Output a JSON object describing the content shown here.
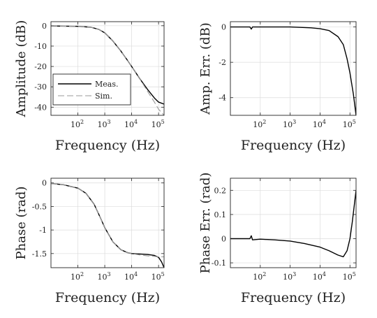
{
  "chart_data": [
    {
      "type": "line",
      "id": "amplitude",
      "title": "",
      "xlabel": "Frequency (Hz)",
      "ylabel": "Amplitude (dB)",
      "xscale": "log",
      "xlim": [
        10,
        160000
      ],
      "ylim": [
        -44,
        2
      ],
      "xticks": [
        100,
        1000,
        10000,
        100000
      ],
      "xtick_labels": [
        {
          "base": "10",
          "exp": "2"
        },
        {
          "base": "10",
          "exp": "3"
        },
        {
          "base": "10",
          "exp": "4"
        },
        {
          "base": "10",
          "exp": "5"
        }
      ],
      "yticks": [
        0,
        -10,
        -20,
        -30,
        -40
      ],
      "ytick_labels": [
        "0",
        "-10",
        "-20",
        "-30",
        "-40"
      ],
      "grid": true,
      "legend": {
        "placement": "lower-left",
        "entries": [
          "Meas.",
          "Sim."
        ]
      },
      "series": [
        {
          "name": "Meas.",
          "color": "#000000",
          "dash": "solid",
          "x": [
            10,
            30,
            100,
            300,
            600,
            1000,
            2000,
            4000,
            7000,
            10000,
            20000,
            40000,
            70000,
            100000,
            160000
          ],
          "y": [
            -0.1,
            -0.2,
            -0.3,
            -0.7,
            -1.8,
            -3.5,
            -7.5,
            -12.5,
            -17.0,
            -20.0,
            -26.0,
            -31.5,
            -35.5,
            -37.5,
            -38.5
          ]
        },
        {
          "name": "Sim.",
          "color": "#9a9a9a",
          "dash": "dashed",
          "x": [
            10,
            30,
            100,
            300,
            600,
            1000,
            2000,
            4000,
            7000,
            10000,
            20000,
            40000,
            70000,
            100000,
            160000
          ],
          "y": [
            -0.1,
            -0.2,
            -0.3,
            -0.7,
            -1.8,
            -3.5,
            -7.5,
            -12.5,
            -17.0,
            -20.0,
            -26.0,
            -32.5,
            -37.5,
            -41.0,
            -44.0
          ]
        }
      ]
    },
    {
      "type": "line",
      "id": "amp-err",
      "title": "",
      "xlabel": "Frequency (Hz)",
      "ylabel": "Amp. Err. (dB)",
      "xscale": "log",
      "xlim": [
        10,
        160000
      ],
      "ylim": [
        -5,
        0.3
      ],
      "xticks": [
        100,
        1000,
        10000,
        100000
      ],
      "xtick_labels": [
        {
          "base": "10",
          "exp": "2"
        },
        {
          "base": "10",
          "exp": "3"
        },
        {
          "base": "10",
          "exp": "4"
        },
        {
          "base": "10",
          "exp": "5"
        }
      ],
      "yticks": [
        0,
        -2,
        -4
      ],
      "ytick_labels": [
        "0",
        "-2",
        "-4"
      ],
      "grid": true,
      "series": [
        {
          "name": "",
          "color": "#000000",
          "dash": "solid",
          "x": [
            10,
            30,
            45,
            50,
            55,
            100,
            1000,
            5000,
            10000,
            20000,
            40000,
            60000,
            80000,
            100000,
            130000,
            160000
          ],
          "y": [
            0.0,
            0.0,
            0.0,
            -0.12,
            0.0,
            0.0,
            0.0,
            -0.05,
            -0.1,
            -0.2,
            -0.55,
            -1.0,
            -1.8,
            -2.6,
            -3.8,
            -5.0
          ]
        }
      ]
    },
    {
      "type": "line",
      "id": "phase",
      "title": "",
      "xlabel": "Frequency (Hz)",
      "ylabel": "Phase (rad)",
      "xscale": "log",
      "xlim": [
        10,
        160000
      ],
      "ylim": [
        -1.8,
        0.1
      ],
      "xticks": [
        100,
        1000,
        10000,
        100000
      ],
      "xtick_labels": [
        {
          "base": "10",
          "exp": "2"
        },
        {
          "base": "10",
          "exp": "3"
        },
        {
          "base": "10",
          "exp": "4"
        },
        {
          "base": "10",
          "exp": "5"
        }
      ],
      "yticks": [
        0,
        -0.5,
        -1,
        -1.5
      ],
      "ytick_labels": [
        "0",
        "-0.5",
        "-1",
        "-1.5"
      ],
      "grid": true,
      "series": [
        {
          "name": "Meas.",
          "color": "#000000",
          "dash": "solid",
          "x": [
            10,
            30,
            100,
            200,
            400,
            700,
            1000,
            2000,
            4000,
            7000,
            10000,
            20000,
            40000,
            70000,
            100000,
            130000,
            160000
          ],
          "y": [
            -0.01,
            -0.04,
            -0.11,
            -0.22,
            -0.45,
            -0.75,
            -0.95,
            -1.25,
            -1.42,
            -1.48,
            -1.5,
            -1.51,
            -1.52,
            -1.54,
            -1.58,
            -1.68,
            -1.8
          ]
        },
        {
          "name": "Sim.",
          "color": "#9a9a9a",
          "dash": "dashed",
          "x": [
            10,
            30,
            100,
            200,
            400,
            700,
            1000,
            2000,
            4000,
            7000,
            10000,
            20000,
            40000,
            70000,
            100000,
            130000,
            160000
          ],
          "y": [
            -0.01,
            -0.04,
            -0.11,
            -0.22,
            -0.45,
            -0.75,
            -0.95,
            -1.25,
            -1.42,
            -1.48,
            -1.5,
            -1.53,
            -1.55,
            -1.56,
            -1.57,
            -1.57,
            -1.57
          ]
        }
      ]
    },
    {
      "type": "line",
      "id": "phase-err",
      "title": "",
      "xlabel": "Frequency (Hz)",
      "ylabel": "Phase Err. (rad)",
      "xscale": "log",
      "xlim": [
        10,
        160000
      ],
      "ylim": [
        -0.12,
        0.25
      ],
      "xticks": [
        100,
        1000,
        10000,
        100000
      ],
      "xtick_labels": [
        {
          "base": "10",
          "exp": "2"
        },
        {
          "base": "10",
          "exp": "3"
        },
        {
          "base": "10",
          "exp": "4"
        },
        {
          "base": "10",
          "exp": "5"
        }
      ],
      "yticks": [
        0.2,
        0.1,
        0,
        -0.1
      ],
      "ytick_labels": [
        "0.2",
        "0.1",
        "0",
        "-0.1"
      ],
      "grid": true,
      "series": [
        {
          "name": "",
          "color": "#000000",
          "dash": "solid",
          "x": [
            10,
            30,
            45,
            50,
            55,
            100,
            300,
            1000,
            3000,
            10000,
            20000,
            40000,
            60000,
            80000,
            100000,
            120000,
            140000,
            160000
          ],
          "y": [
            0.0,
            0.0,
            0.0,
            0.012,
            -0.005,
            -0.002,
            -0.005,
            -0.01,
            -0.02,
            -0.035,
            -0.05,
            -0.068,
            -0.075,
            -0.05,
            0.0,
            0.07,
            0.14,
            0.2
          ]
        }
      ]
    }
  ]
}
